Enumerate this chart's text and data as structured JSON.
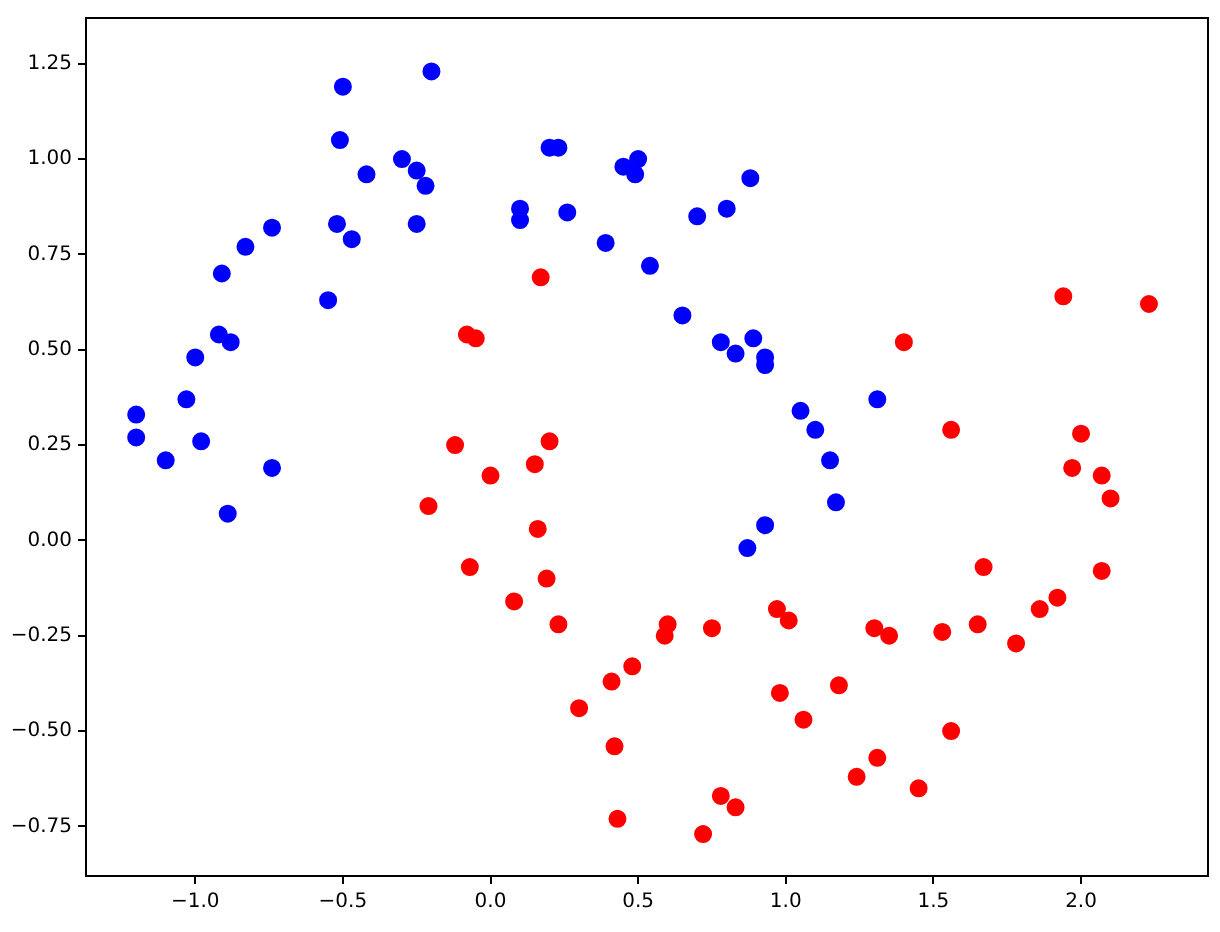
{
  "chart_data": {
    "type": "scatter",
    "marker": "circle",
    "grid": false,
    "legend": false,
    "xlim": [
      -1.37,
      2.43
    ],
    "ylim": [
      -0.88,
      1.37
    ],
    "xticks": [
      {
        "value": -1,
        "label": "−1.0"
      },
      {
        "value": -0.5,
        "label": "−0.5"
      },
      {
        "value": 0,
        "label": "0.0"
      },
      {
        "value": 0.5,
        "label": "0.5"
      },
      {
        "value": 1,
        "label": "1.0"
      },
      {
        "value": 1.5,
        "label": "1.5"
      },
      {
        "value": 2,
        "label": "2.0"
      }
    ],
    "yticks": [
      {
        "value": -0.75,
        "label": "−0.75"
      },
      {
        "value": -0.5,
        "label": "−0.50"
      },
      {
        "value": -0.25,
        "label": "−0.25"
      },
      {
        "value": 0,
        "label": "0.00"
      },
      {
        "value": 0.25,
        "label": "0.25"
      },
      {
        "value": 0.5,
        "label": "0.50"
      },
      {
        "value": 0.75,
        "label": "0.75"
      },
      {
        "value": 1,
        "label": "1.00"
      },
      {
        "value": 1.25,
        "label": "1.25"
      }
    ],
    "series": [
      {
        "color": "#0000ff",
        "x": [
          -1.2,
          -1.2,
          -1.1,
          -1.03,
          -1.0,
          -0.98,
          -0.92,
          -0.91,
          -0.88,
          -0.89,
          -0.83,
          -0.74,
          -0.74,
          -0.55,
          -0.52,
          -0.51,
          -0.5,
          -0.47,
          -0.42,
          -0.3,
          -0.25,
          -0.25,
          -0.22,
          -0.2,
          0.1,
          0.1,
          0.2,
          0.23,
          0.26,
          0.39,
          0.45,
          0.49,
          0.5,
          0.54,
          0.65,
          0.7,
          0.8,
          0.78,
          0.83,
          0.89,
          0.88,
          0.93,
          0.93,
          1.05,
          1.1,
          1.15,
          1.17,
          1.31,
          0.93,
          0.87
        ],
        "values": [
          0.33,
          0.27,
          0.21,
          0.37,
          0.48,
          0.26,
          0.54,
          0.7,
          0.52,
          0.07,
          0.77,
          0.82,
          0.19,
          0.63,
          0.83,
          1.05,
          1.19,
          0.79,
          0.96,
          1.0,
          0.97,
          0.83,
          0.93,
          1.23,
          0.87,
          0.84,
          1.03,
          1.03,
          0.86,
          0.78,
          0.98,
          0.96,
          1.0,
          0.72,
          0.59,
          0.85,
          0.87,
          0.52,
          0.49,
          0.53,
          0.95,
          0.46,
          0.48,
          0.34,
          0.29,
          0.21,
          0.1,
          0.37,
          0.04,
          -0.02
        ]
      },
      {
        "color": "#ff0000",
        "x": [
          0.17,
          -0.08,
          -0.05,
          -0.12,
          -0.21,
          0.0,
          0.15,
          0.2,
          -0.07,
          0.16,
          0.19,
          0.08,
          0.23,
          0.48,
          0.41,
          0.3,
          0.42,
          0.43,
          0.6,
          0.59,
          0.75,
          0.72,
          0.78,
          0.83,
          0.97,
          1.01,
          0.98,
          1.06,
          1.18,
          1.24,
          1.31,
          1.3,
          1.35,
          1.4,
          1.45,
          1.53,
          1.56,
          1.56,
          1.65,
          1.67,
          1.78,
          1.86,
          1.92,
          1.94,
          1.97,
          2.0,
          2.07,
          2.1,
          2.07,
          2.23
        ],
        "values": [
          0.69,
          0.54,
          0.53,
          0.25,
          0.09,
          0.17,
          0.2,
          0.26,
          -0.07,
          0.03,
          -0.1,
          -0.16,
          -0.22,
          -0.33,
          -0.37,
          -0.44,
          -0.54,
          -0.73,
          -0.22,
          -0.25,
          -0.23,
          -0.77,
          -0.67,
          -0.7,
          -0.18,
          -0.21,
          -0.4,
          -0.47,
          -0.38,
          -0.62,
          -0.57,
          -0.23,
          -0.25,
          0.52,
          -0.65,
          -0.24,
          0.29,
          -0.5,
          -0.22,
          -0.07,
          -0.27,
          -0.18,
          -0.15,
          0.64,
          0.19,
          0.28,
          0.17,
          0.11,
          -0.08,
          0.62
        ]
      }
    ]
  }
}
